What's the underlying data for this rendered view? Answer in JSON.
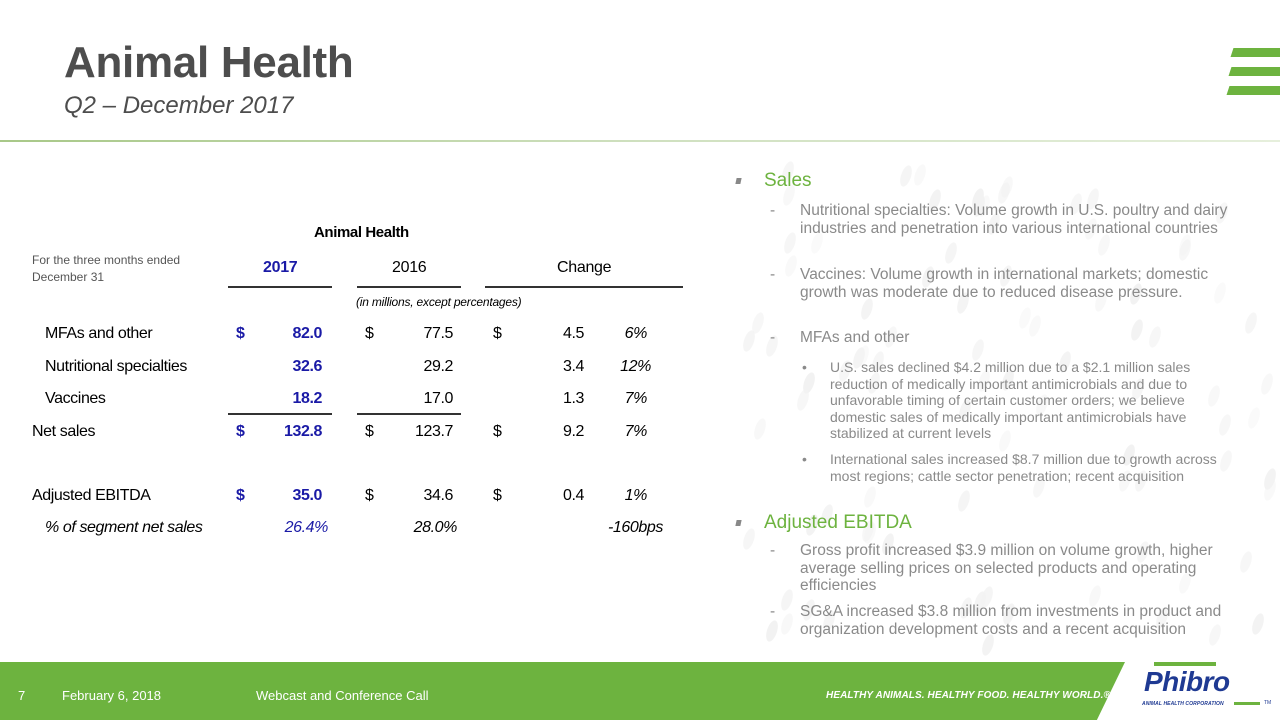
{
  "header": {
    "title": "Animal Health",
    "subtitle": "Q2 – December 2017"
  },
  "colors": {
    "brand_green": "#6db33f",
    "title_gray": "#4d4d4d",
    "current_year_blue": "#1a1aa6",
    "body_gray": "#8a8a8a",
    "logo_blue": "#1f3a93"
  },
  "table": {
    "title": "Animal Health",
    "period_label": "For the three months ended December 31",
    "columns": {
      "current": "2017",
      "prior": "2016",
      "change": "Change"
    },
    "units_note": "(in millions, except percentages)",
    "rows": [
      {
        "label": "MFAs and other",
        "cur_dollar": "$",
        "cur": "82.0",
        "prior_dollar": "$",
        "prior": "77.5",
        "chg_dollar": "$",
        "chg": "4.5",
        "pct": "6%"
      },
      {
        "label": "Nutritional specialties",
        "cur_dollar": "",
        "cur": "32.6",
        "prior_dollar": "",
        "prior": "29.2",
        "chg_dollar": "",
        "chg": "3.4",
        "pct": "12%"
      },
      {
        "label": "Vaccines",
        "cur_dollar": "",
        "cur": "18.2",
        "prior_dollar": "",
        "prior": "17.0",
        "chg_dollar": "",
        "chg": "1.3",
        "pct": "7%"
      },
      {
        "label": "Net sales",
        "cur_dollar": "$",
        "cur": "132.8",
        "prior_dollar": "$",
        "prior": "123.7",
        "chg_dollar": "$",
        "chg": "9.2",
        "pct": "7%"
      },
      {
        "label": "Adjusted EBITDA",
        "cur_dollar": "$",
        "cur": "35.0",
        "prior_dollar": "$",
        "prior": "34.6",
        "chg_dollar": "$",
        "chg": "0.4",
        "pct": "1%"
      },
      {
        "label": "% of segment net sales",
        "cur_dollar": "",
        "cur": "26.4%",
        "prior_dollar": "",
        "prior": "28.0%",
        "chg_dollar": "",
        "chg": "",
        "pct": "-160bps"
      }
    ]
  },
  "commentary": {
    "sales": {
      "heading": "Sales",
      "items": [
        {
          "dash": "-",
          "text": "Nutritional specialties: Volume growth in U.S. poultry and dairy industries and penetration into various international countries"
        },
        {
          "dash": "-",
          "text": "Vaccines: Volume growth in international markets; domestic growth was moderate due to reduced disease pressure."
        },
        {
          "dash": "-",
          "text": "MFAs and other"
        }
      ],
      "sub_bullets": [
        {
          "dot": "•",
          "text": "U.S. sales declined $4.2 million due to a $2.1 million sales reduction of medically important antimicrobials and due to unfavorable timing of certain customer orders; we believe domestic sales of medically important antimicrobials have stabilized at current levels"
        },
        {
          "dot": "•",
          "text": "International sales increased $8.7 million due to growth across most regions; cattle sector penetration; recent acquisition"
        }
      ]
    },
    "ebitda": {
      "heading": "Adjusted EBITDA",
      "items": [
        {
          "dash": "-",
          "text": "Gross profit increased $3.9 million on volume growth, higher average selling prices on selected products and operating efficiencies"
        },
        {
          "dash": "-",
          "text": "SG&A increased $3.8 million from investments in product and organization development costs and a recent acquisition"
        }
      ]
    }
  },
  "footer": {
    "page_number": "7",
    "date": "February 6, 2018",
    "event": "Webcast and Conference Call",
    "tagline": "HEALTHY ANIMALS. HEALTHY FOOD. HEALTHY WORLD.®",
    "logo_word": "Phibro",
    "logo_sub": "ANIMAL HEALTH CORPORATION",
    "logo_tm": "TM"
  },
  "icons": {
    "corner_logo": "green-stripes-icon",
    "section_bullet": "square-bullet-icon"
  }
}
